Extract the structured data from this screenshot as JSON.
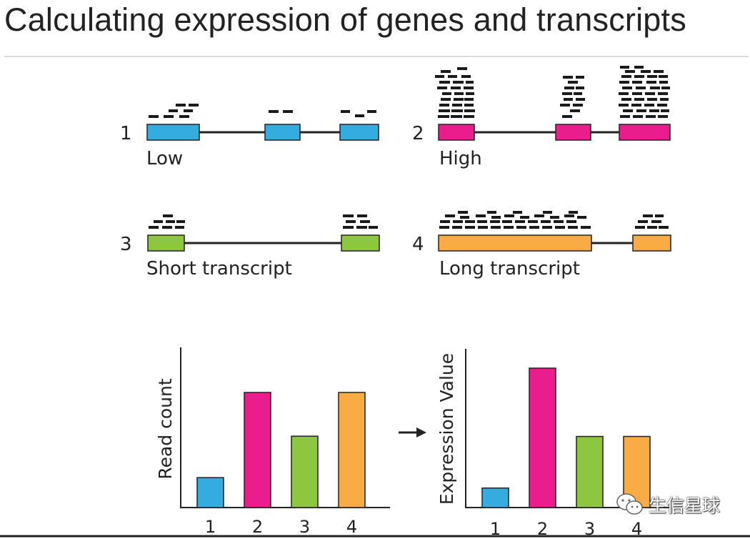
{
  "title": "Calculating expression of genes and transcripts",
  "colors": {
    "blue": "#35ace0",
    "pink": "#e91e8c",
    "green": "#8dc63f",
    "orange": "#f9ac45",
    "line": "#222222"
  },
  "genes": [
    {
      "number": "1",
      "label": "Low",
      "color": "blue"
    },
    {
      "number": "2",
      "label": "High",
      "color": "pink"
    },
    {
      "number": "3",
      "label": "Short transcript",
      "color": "green"
    },
    {
      "number": "4",
      "label": "Long transcript",
      "color": "orange"
    }
  ],
  "chart_data": [
    {
      "type": "bar",
      "ylabel": "Read count",
      "categories": [
        "1",
        "2",
        "3",
        "4"
      ],
      "values": [
        0.26,
        1.0,
        0.62,
        1.0
      ],
      "ylim": [
        0,
        1.4
      ],
      "colors": [
        "#35ace0",
        "#e91e8c",
        "#8dc63f",
        "#f9ac45"
      ]
    },
    {
      "type": "bar",
      "ylabel": "Expression Value",
      "categories": [
        "1",
        "2",
        "3",
        "4"
      ],
      "values": [
        0.14,
        1.0,
        0.51,
        0.51
      ],
      "ylim": [
        0,
        1.1
      ],
      "colors": [
        "#35ace0",
        "#e91e8c",
        "#8dc63f",
        "#f9ac45"
      ]
    }
  ],
  "watermark": {
    "text": "生信星球",
    "icon": "wechat-icon"
  }
}
